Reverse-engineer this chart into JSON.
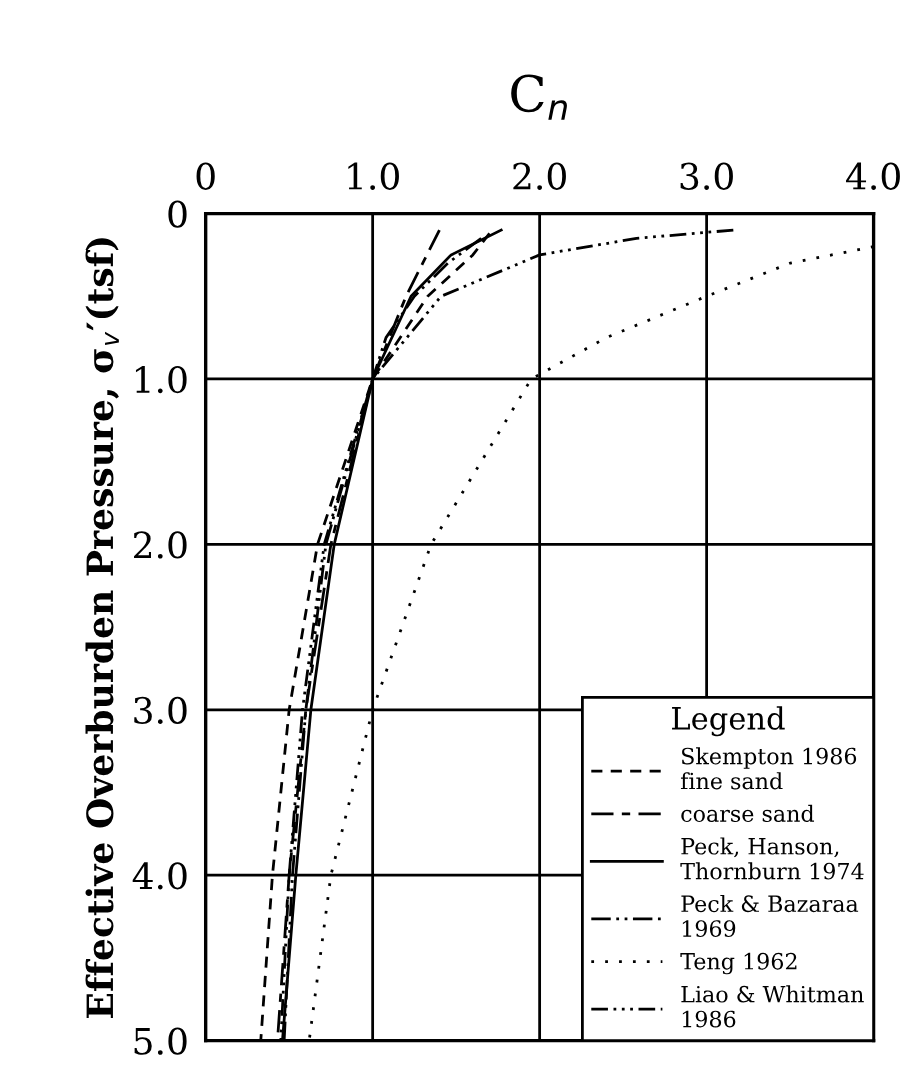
{
  "chart_data": {
    "type": "line",
    "xlabel": "C$_{n}$",
    "ylabel": "Effective Overburden Pressure, σ$_{v}$′(tsf)",
    "legend_title": "Legend",
    "xlim": [
      0,
      4
    ],
    "xticks": [
      0,
      {
        "value": 1,
        "label": "1.0"
      },
      {
        "value": 2,
        "label": "2.0"
      },
      {
        "value": 3,
        "label": "3.0"
      },
      {
        "value": 4,
        "label": "4.0"
      }
    ],
    "ylim": [
      5,
      0
    ],
    "yticks": [
      0,
      {
        "value": 1,
        "label": "1.0"
      },
      {
        "value": 2,
        "label": "2.0"
      },
      {
        "value": 3,
        "label": "3.0"
      },
      {
        "value": 4,
        "label": "4.0"
      },
      {
        "value": 5,
        "label": "5.0"
      }
    ],
    "grid": true,
    "legend": "bottom right",
    "series": [
      {
        "name": "Skempton 1986\nfine sand",
        "color": "#000000",
        "line_style": "dashed",
        "x": [
          1.7,
          1.6,
          1.33,
          1.0,
          0.67,
          0.5,
          0.4,
          0.33
        ],
        "values": [
          0.12,
          0.25,
          0.5,
          1,
          2,
          3,
          4,
          5
        ]
      },
      {
        "name": "coarse sand",
        "color": "#000000",
        "line_style": "dashdash",
        "x": [
          1.4,
          1.3,
          1.2,
          1.0,
          0.75,
          0.6,
          0.5,
          0.43
        ],
        "values": [
          0.1,
          0.3,
          0.5,
          1,
          2,
          3,
          4,
          5
        ]
      },
      {
        "name": "Peck, Hanson,\nThornburn 1974",
        "color": "#000000",
        "line_style": "solid",
        "x": [
          1.77,
          1.47,
          1.23,
          1.0,
          0.77,
          0.63,
          0.54,
          0.46
        ],
        "values": [
          0.1,
          0.25,
          0.5,
          1,
          2,
          3,
          4,
          5
        ]
      },
      {
        "name": "Peck & Bazaraa\n1969",
        "color": "#000000",
        "line_style": "dashdotdot",
        "x": [
          1.65,
          1.45,
          1.25,
          1.08,
          1.0,
          0.72,
          0.6,
          0.52,
          0.47
        ],
        "values": [
          0.15,
          0.3,
          0.5,
          0.75,
          1,
          2,
          3,
          4,
          5
        ]
      },
      {
        "name": "Teng 1962",
        "color": "#000000",
        "line_style": "dotted",
        "x": [
          4.0,
          3.5,
          3.0,
          2.4,
          1.95,
          1.35,
          1.0,
          0.75,
          0.62
        ],
        "values": [
          0.2,
          0.3,
          0.5,
          0.75,
          1,
          2,
          3,
          4,
          5
        ]
      },
      {
        "name": "Liao & Whitman\n1986",
        "color": "#000000",
        "line_style": "dashdotdotdot",
        "x": [
          3.16,
          2.58,
          2.0,
          1.41,
          1.0,
          0.71,
          0.58,
          0.5,
          0.45
        ],
        "values": [
          0.1,
          0.15,
          0.25,
          0.5,
          1,
          2,
          3,
          4,
          5
        ]
      }
    ]
  }
}
